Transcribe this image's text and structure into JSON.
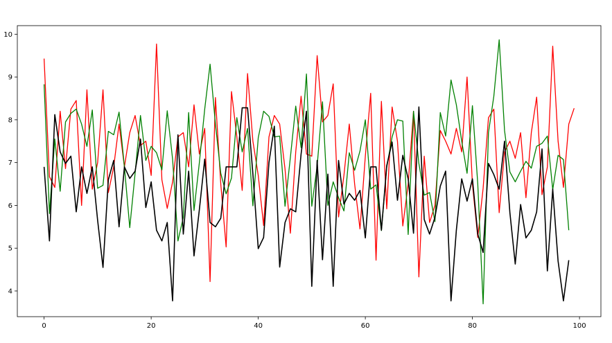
{
  "chart_data": {
    "type": "line",
    "title": "",
    "xlabel": "",
    "ylabel": "",
    "xlim": [
      -5,
      104
    ],
    "ylim": [
      3.4,
      10.2
    ],
    "grid": false,
    "xticks": [
      0,
      20,
      40,
      60,
      80,
      100
    ],
    "yticks": [
      4,
      5,
      6,
      7,
      8,
      9,
      10
    ],
    "xtick_labels": [
      "0",
      "20",
      "40",
      "60",
      "80",
      "100"
    ],
    "ytick_labels": [
      "4",
      "5",
      "6",
      "7",
      "8",
      "9",
      "10"
    ],
    "series": [
      {
        "color": "#ff0000",
        "x0": 0,
        "values": [
          9.43,
          6.67,
          6.42,
          8.2,
          6.86,
          8.25,
          8.45,
          6.0,
          8.7,
          6.38,
          7.0,
          8.7,
          6.3,
          6.9,
          7.9,
          6.9,
          7.7,
          8.1,
          7.4,
          7.5,
          6.7,
          9.77,
          6.6,
          5.93,
          6.55,
          7.6,
          7.7,
          6.9,
          8.35,
          7.2,
          7.8,
          4.22,
          8.52,
          6.5,
          5.03,
          8.66,
          7.6,
          6.35,
          9.08,
          7.5,
          6.7,
          5.53,
          7.6,
          8.1,
          7.9,
          6.85,
          5.35,
          7.25,
          8.55,
          7.2,
          7.15,
          9.5,
          7.95,
          8.1,
          8.84,
          5.73,
          6.7,
          7.9,
          6.5,
          5.45,
          7.15,
          8.62,
          4.72,
          8.43,
          5.92,
          8.3,
          7.5,
          5.52,
          6.5,
          8.2,
          4.33,
          7.15,
          5.6,
          6.0,
          7.75,
          7.5,
          7.2,
          7.8,
          7.25,
          9.0,
          6.5,
          5.25,
          6.4,
          8.05,
          8.25,
          5.83,
          7.25,
          7.5,
          7.1,
          7.7,
          6.18,
          7.7,
          8.53,
          6.25,
          6.9,
          9.72,
          7.5,
          6.42,
          7.9,
          8.27
        ]
      },
      {
        "color": "#008000",
        "x0": 0,
        "values": [
          8.83,
          5.81,
          7.55,
          6.33,
          7.95,
          8.15,
          8.25,
          7.9,
          7.38,
          8.23,
          6.4,
          6.47,
          7.73,
          7.65,
          8.18,
          6.9,
          5.48,
          6.75,
          8.1,
          7.05,
          7.38,
          7.23,
          6.83,
          8.21,
          7.08,
          5.17,
          5.72,
          8.17,
          5.88,
          7.0,
          8.25,
          9.3,
          7.9,
          6.75,
          6.27,
          6.64,
          8.05,
          7.25,
          7.8,
          5.99,
          7.58,
          8.2,
          8.08,
          7.6,
          7.62,
          5.98,
          7.12,
          8.32,
          7.35,
          9.07,
          5.98,
          6.92,
          8.42,
          6.0,
          6.55,
          6.18,
          5.87,
          7.23,
          6.82,
          7.27,
          8.0,
          6.38,
          6.48,
          5.41,
          6.89,
          7.6,
          8.0,
          7.97,
          5.32,
          8.2,
          6.98,
          6.24,
          6.3,
          5.62,
          8.17,
          7.62,
          8.93,
          8.35,
          7.5,
          6.75,
          8.33,
          6.5,
          3.7,
          7.7,
          8.55,
          9.87,
          7.75,
          6.78,
          6.55,
          6.8,
          7.03,
          6.87,
          7.38,
          7.45,
          7.62,
          6.37,
          7.17,
          7.07,
          5.42
        ]
      },
      {
        "color": "#000000",
        "x0": 0,
        "values": [
          6.9,
          5.17,
          8.12,
          7.25,
          6.98,
          7.15,
          5.85,
          6.9,
          6.28,
          6.9,
          5.65,
          4.55,
          6.6,
          7.05,
          5.5,
          6.9,
          6.63,
          6.8,
          7.55,
          5.95,
          6.55,
          5.42,
          5.17,
          5.6,
          3.77,
          7.65,
          5.33,
          6.8,
          4.82,
          5.9,
          7.08,
          5.6,
          5.5,
          5.7,
          6.9,
          6.9,
          6.9,
          8.28,
          8.28,
          6.73,
          4.99,
          5.25,
          7.0,
          7.85,
          4.56,
          5.6,
          5.92,
          5.85,
          7.2,
          8.2,
          4.11,
          7.05,
          4.73,
          6.73,
          4.11,
          7.05,
          6.03,
          6.28,
          6.12,
          6.35,
          5.24,
          6.9,
          6.9,
          5.42,
          6.93,
          7.48,
          6.12,
          7.17,
          6.62,
          5.35,
          8.3,
          5.67,
          5.33,
          5.72,
          6.45,
          6.8,
          3.77,
          5.42,
          6.62,
          6.1,
          6.62,
          5.33,
          4.9,
          6.98,
          6.72,
          6.38,
          7.5,
          5.83,
          4.63,
          6.02,
          5.24,
          5.42,
          5.85,
          7.32,
          4.47,
          6.38,
          4.7,
          3.77,
          4.72
        ]
      }
    ]
  }
}
